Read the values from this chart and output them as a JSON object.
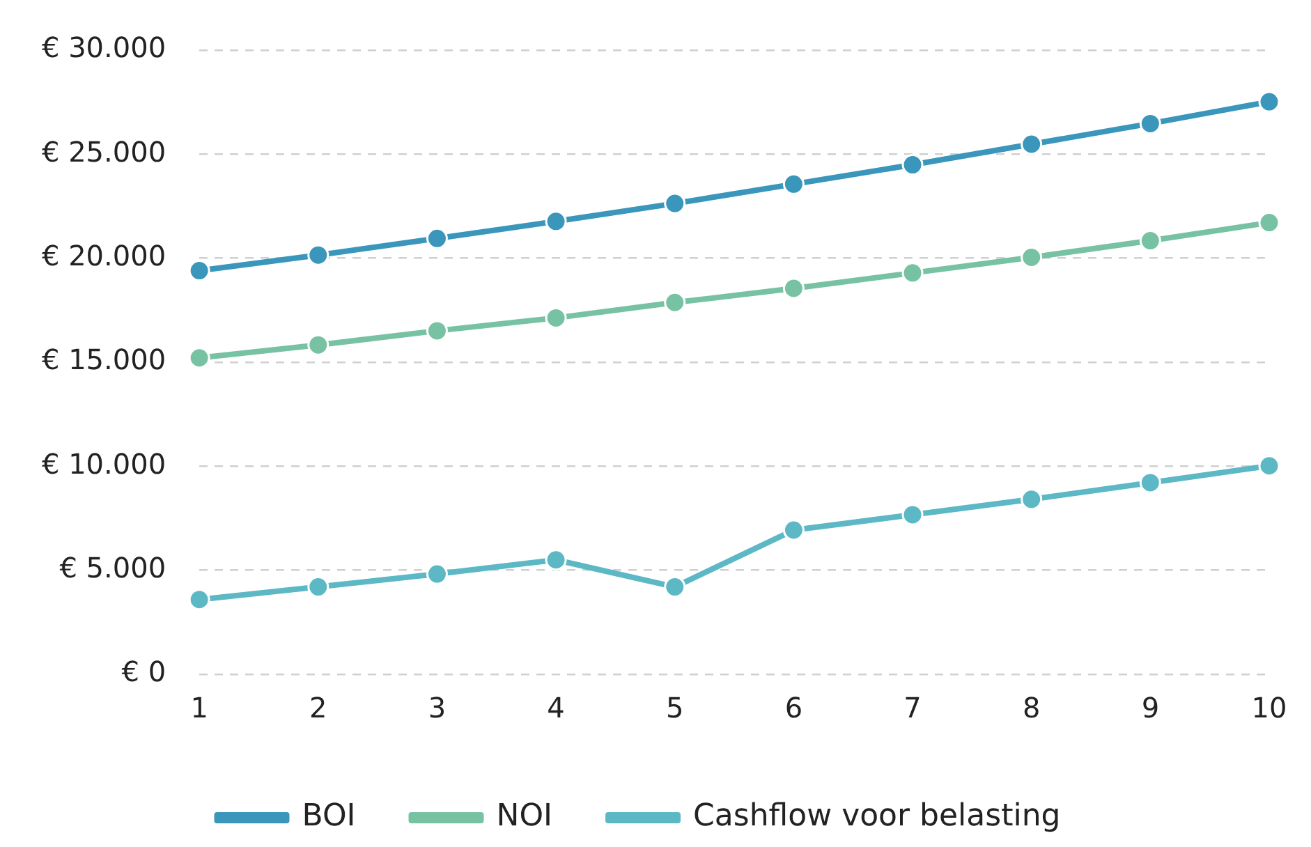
{
  "chart_data": {
    "type": "line",
    "categories": [
      "1",
      "2",
      "3",
      "4",
      "5",
      "6",
      "7",
      "8",
      "9",
      "10"
    ],
    "series": [
      {
        "name": "BOI",
        "color": "#3a96bb",
        "values": [
          19400,
          20150,
          20950,
          21770,
          22630,
          23560,
          24490,
          25480,
          26470,
          27520
        ]
      },
      {
        "name": "NOI",
        "color": "#78c2a4",
        "values": [
          15210,
          15830,
          16510,
          17130,
          17870,
          18550,
          19290,
          20040,
          20840,
          21710
        ]
      },
      {
        "name": "Cashflow voor belasting",
        "color": "#5bb8c4",
        "values": [
          3590,
          4200,
          4820,
          5500,
          4200,
          6930,
          7670,
          8410,
          9210,
          10020
        ]
      }
    ],
    "ylim": [
      0,
      30000
    ],
    "yticks": [
      {
        "value": 0,
        "label": "€ 0"
      },
      {
        "value": 5000,
        "label": "€ 5.000"
      },
      {
        "value": 10000,
        "label": "€ 10.000"
      },
      {
        "value": 15000,
        "label": "€ 15.000"
      },
      {
        "value": 20000,
        "label": "€ 20.000"
      },
      {
        "value": 25000,
        "label": "€ 25.000"
      },
      {
        "value": 30000,
        "label": "€ 30.000"
      }
    ],
    "grid": "y",
    "legend": "bottom",
    "marker": "circle",
    "line_style": "solid"
  }
}
